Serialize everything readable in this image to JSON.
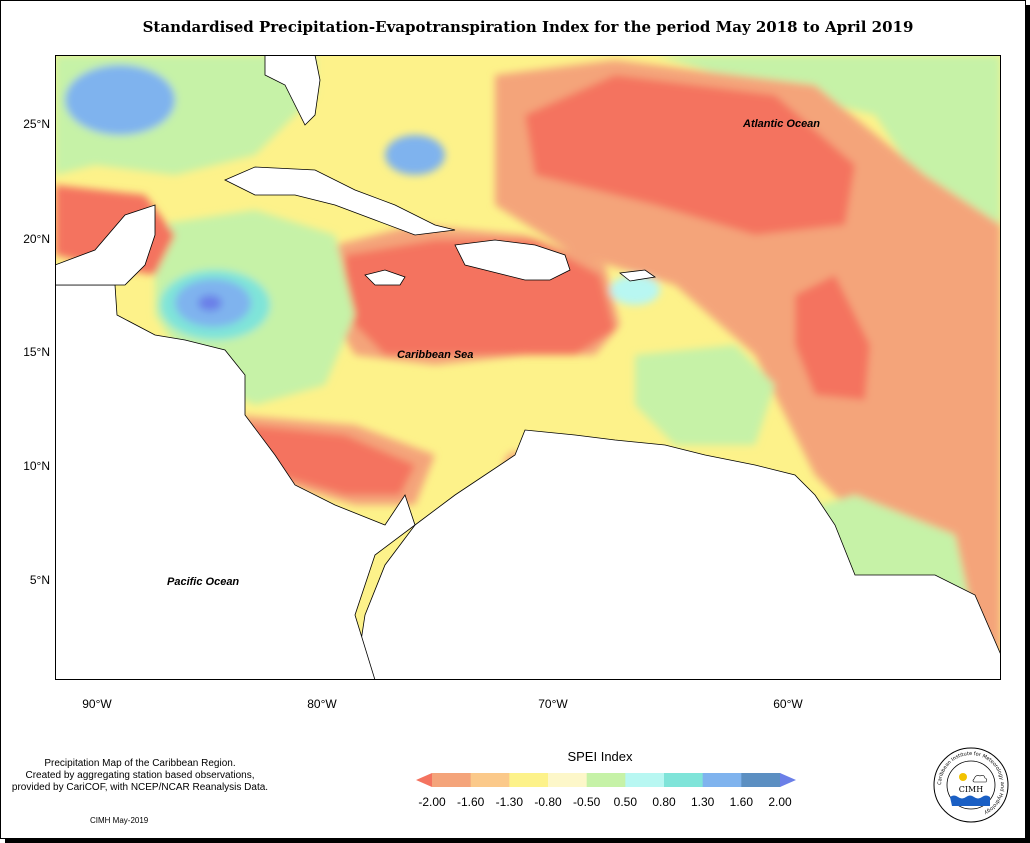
{
  "title": "Standardised Precipitation-Evapotranspiration Index for the period May 2018 to April 2019",
  "map": {
    "lat_labels": [
      "25°N",
      "20°N",
      "15°N",
      "10°N",
      "5°N"
    ],
    "lon_labels": [
      "90°W",
      "80°W",
      "70°W",
      "60°W"
    ],
    "ocean_labels": {
      "atlantic": "Atlantic Ocean",
      "caribbean": "Caribbean Sea",
      "pacific": "Pacific Ocean"
    }
  },
  "legend": {
    "title": "SPEI Index",
    "ticks": [
      "-2.00",
      "-1.60",
      "-1.30",
      "-0.80",
      "-0.50",
      "0.50",
      "0.80",
      "1.30",
      "1.60",
      "2.00"
    ],
    "colors": [
      "#f4735f",
      "#f4a47a",
      "#fbc98a",
      "#fdf28a",
      "#fdf7c9",
      "#c6f2a7",
      "#b8f7f2",
      "#7fe4d9",
      "#7fb3ee",
      "#5c8fc2",
      "#6b7fe8"
    ]
  },
  "credit": {
    "line1": "Precipitation Map of the Caribbean Region.",
    "line2": "Created by aggregating station based observations,",
    "line3": "provided by CariCOF, with NCEP/NCAR Reanalysis Data.",
    "date": "CIMH May-2019"
  },
  "logo": {
    "text": "CIMH",
    "ring_text": "Caribbean Institute for Meteorology and Hydrology"
  }
}
